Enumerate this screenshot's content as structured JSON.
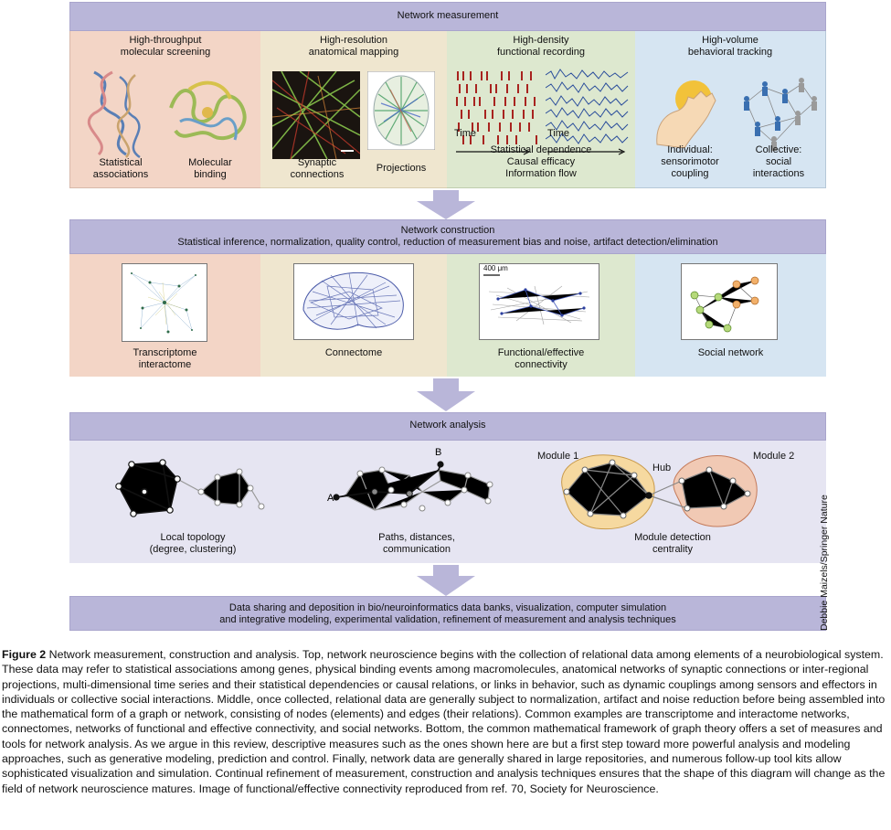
{
  "measurement": {
    "title": "Network measurement",
    "columns": [
      {
        "title": "High-throughput\nmolecular screening",
        "labels": [
          "Statistical\nassociations",
          "Molecular\nbinding"
        ]
      },
      {
        "title": "High-resolution\nanatomical mapping",
        "labels": [
          "Synaptic\nconnections",
          "Projections"
        ]
      },
      {
        "title": "High-density\nfunctional recording",
        "labels": [
          "Time",
          "Time",
          "Statistical dependence\nCausal efficacy\nInformation flow"
        ]
      },
      {
        "title": "High-volume\nbehavioral tracking",
        "labels": [
          "Individual:\nsensorimotor\ncoupling",
          "Collective:\nsocial\ninteractions"
        ]
      }
    ]
  },
  "construction": {
    "title": "Network construction",
    "subtitle": "Statistical inference, normalization, quality control, reduction of measurement bias and noise, artifact detection/elimination",
    "scale_label": "400 μm",
    "items": [
      "Transcriptome\ninteractome",
      "Connectome",
      "Functional/effective\nconnectivity",
      "Social network"
    ]
  },
  "analysis": {
    "title": "Network analysis",
    "items": [
      "Local topology\n(degree, clustering)",
      "Paths, distances,\ncommunication",
      "Module detection\ncentrality"
    ],
    "node_a": "A",
    "node_b": "B",
    "module1": "Module 1",
    "module2": "Module 2",
    "hub": "Hub"
  },
  "sharing": {
    "text": "Data sharing and deposition in bio/neuroinformatics data banks, visualization, computer simulation\nand integrative modeling, experimental validation, refinement of measurement and analysis techniques"
  },
  "credit": "Debbie Maizels/Springer Nature",
  "caption": {
    "label": "Figure 2",
    "text": "  Network measurement, construction and analysis. Top, network neuroscience begins with the collection of relational data among elements of a neurobiological system. These data may refer to statistical associations among genes, physical binding events among macromolecules, anatomical networks of synaptic connections or inter-regional projections, multi-dimensional time series and their statistical dependencies or causal relations, or links in behavior, such as dynamic couplings among sensors and effectors in individuals or collective social interactions. Middle, once collected, relational data are generally subject to normalization, artifact and noise reduction before being assembled into the mathematical form of a graph or network, consisting of nodes (elements) and edges (their relations). Common examples are transcriptome and interactome networks, connectomes, networks of functional and effective connectivity, and social networks. Bottom, the common mathematical framework of graph theory offers a set of measures and tools for network analysis. As we argue in this review, descriptive measures such as the ones shown here are but a first step toward more powerful analysis and modeling approaches, such as generative modeling, prediction and control. Finally, network data are generally shared in large repositories, and numerous follow-up tool kits allow sophisticated visualization and simulation. Continual refinement of measurement, construction and analysis techniques ensures that the shape of this diagram will change as the field of network neuroscience matures. Image of functional/effective connectivity reproduced from ref. 70, Society for Neuroscience."
  },
  "colors": {
    "bar": "#b9b6d9",
    "molecular": "#f3d5c6",
    "anatomical": "#efe6cf",
    "functional": "#dde8cf",
    "behavioral": "#d6e5f2",
    "analysis_bg": "#e6e5f2",
    "module1": "#f6d9a0",
    "module2": "#f1c9b4"
  }
}
